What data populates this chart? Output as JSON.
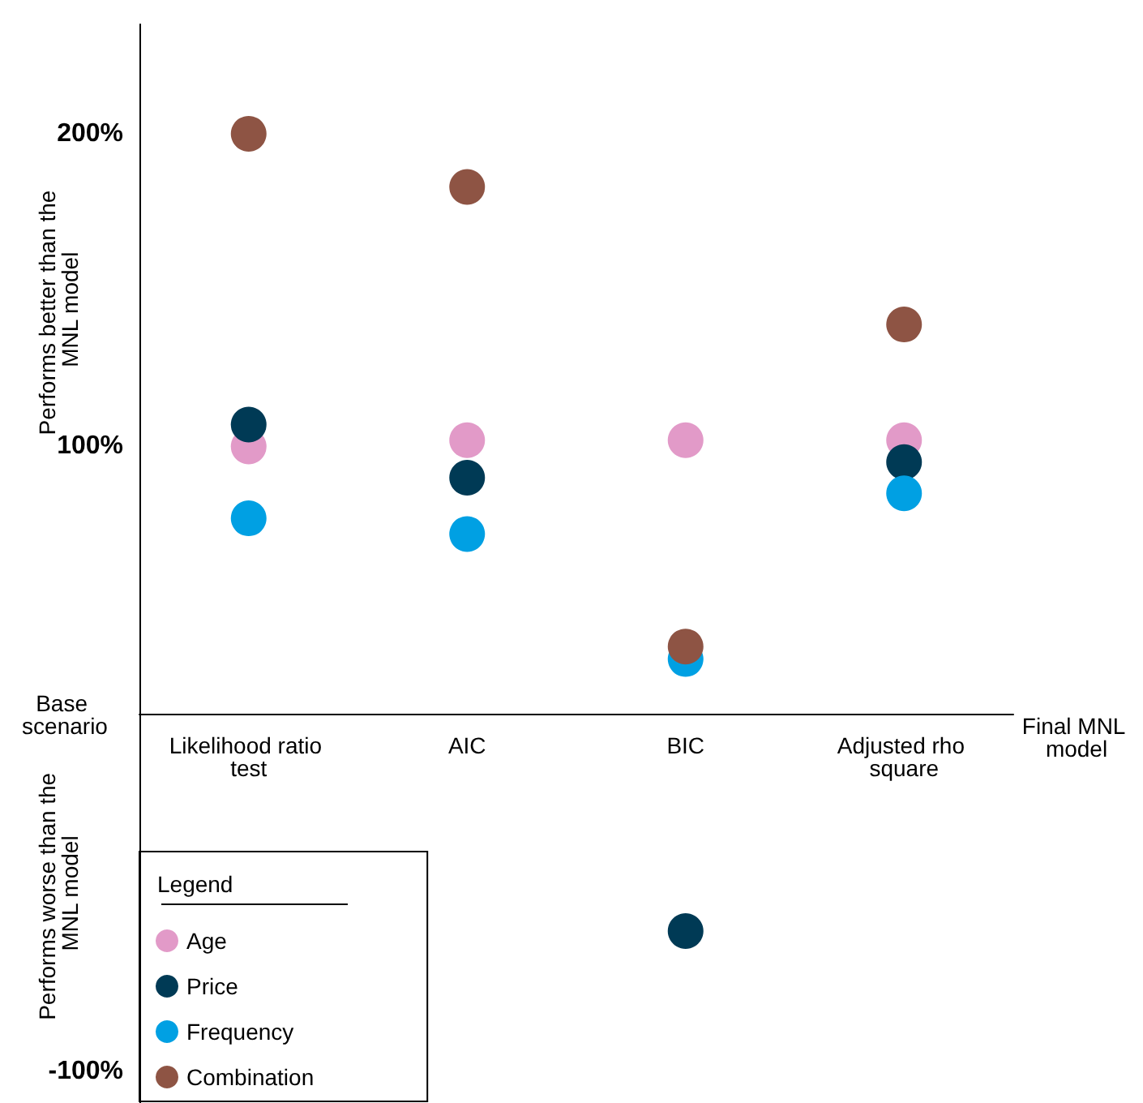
{
  "chart_data": {
    "type": "scatter",
    "categories": [
      "Likelihood ratio test",
      "AIC",
      "BIC",
      "Adjusted rho square"
    ],
    "ylabel": "Performs better than the MNL model",
    "annotations": [
      "Performs worse than the MNL model",
      "Base scenario",
      "Final MNL model"
    ],
    "legend_title": "Legend",
    "series": [
      {
        "name": "Age",
        "color": "#e29ac8",
        "values": [
          100,
          102,
          102,
          102
        ]
      },
      {
        "name": "Price",
        "color": "#003a55",
        "values": [
          107,
          90,
          -55,
          95
        ]
      },
      {
        "name": "Frequency",
        "color": "#00a0e3",
        "values": [
          77,
          72,
          32,
          85
        ]
      },
      {
        "name": "Combination",
        "color": "#8e5444",
        "values": [
          200,
          183,
          36,
          139
        ]
      }
    ],
    "ylim": [
      -110,
      235
    ],
    "yticks": [
      {
        "value": -100,
        "label": "-100%"
      },
      {
        "value": 100,
        "label": "100%"
      },
      {
        "value": 200,
        "label": "200%"
      }
    ],
    "grid": false,
    "legend": "bottom left",
    "marker": "circle"
  }
}
